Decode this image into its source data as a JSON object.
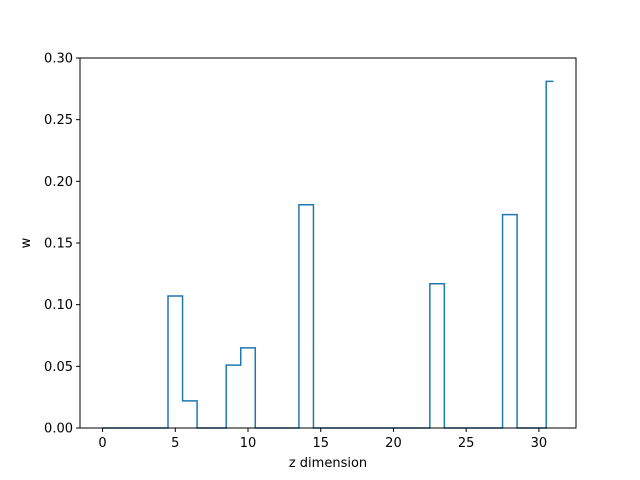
{
  "chart_data": {
    "type": "line",
    "drawstyle": "steps-mid",
    "title": "",
    "xlabel": "z dimension",
    "ylabel": "w",
    "xlim": [
      -1.55,
      32.55
    ],
    "ylim": [
      0.0,
      0.3
    ],
    "xticks": [
      0,
      5,
      10,
      15,
      20,
      25,
      30
    ],
    "yticks": [
      0.0,
      0.05,
      0.1,
      0.15,
      0.2,
      0.25,
      0.3
    ],
    "ytick_labels": [
      "0.00",
      "0.05",
      "0.10",
      "0.15",
      "0.20",
      "0.25",
      "0.30"
    ],
    "grid": false,
    "line_color": "#1f77b4",
    "series": [
      {
        "x": [
          0,
          1,
          2,
          3,
          4,
          5,
          6,
          7,
          8,
          9,
          10,
          11,
          12,
          13,
          14,
          15,
          16,
          17,
          18,
          19,
          20,
          21,
          22,
          23,
          24,
          25,
          26,
          27,
          28,
          29,
          30,
          31
        ],
        "values": [
          0,
          0,
          0,
          0,
          0,
          0.107,
          0.022,
          0,
          0,
          0.051,
          0.065,
          0,
          0,
          0,
          0.181,
          0,
          0,
          0,
          0,
          0,
          0,
          0,
          0,
          0.117,
          0,
          0,
          0,
          0,
          0.173,
          0,
          0,
          0.281
        ]
      }
    ]
  }
}
